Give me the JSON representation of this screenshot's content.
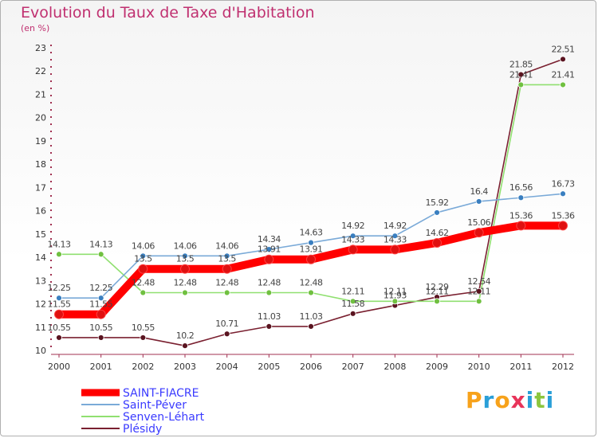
{
  "header": {
    "title": "Evolution du Taux de Taxe d'Habitation",
    "unit": "(en %)"
  },
  "logo": {
    "text": "Proxiti",
    "colors": [
      "#f7a21b",
      "#2a9fd8",
      "#f7a21b",
      "#e8345a",
      "#2a9fd8",
      "#8cc63e",
      "#2a9fd8"
    ]
  },
  "chart_data": {
    "type": "line",
    "categories": [
      "2000",
      "2001",
      "2002",
      "2003",
      "2004",
      "2005",
      "2006",
      "2007",
      "2008",
      "2009",
      "2010",
      "2011",
      "2012"
    ],
    "ylim": [
      10,
      23
    ],
    "yticks": [
      10,
      11,
      12,
      13,
      14,
      15,
      16,
      17,
      18,
      19,
      20,
      21,
      22,
      23
    ],
    "grid": false,
    "legend_placement": "bottom-left",
    "series": [
      {
        "name": "SAINT-FIACRE",
        "color": "#ff0000",
        "marker": "#e01010",
        "values": [
          11.55,
          11.55,
          13.5,
          13.5,
          13.5,
          13.91,
          13.91,
          14.33,
          14.33,
          14.62,
          15.06,
          15.36,
          15.36
        ],
        "labels": [
          "11.55",
          "11.55",
          "13.5",
          "13.5",
          "13.5",
          "13.91",
          "13.91",
          "14.33",
          "14.33",
          "14.62",
          "15.06",
          "15.36",
          "15.36"
        ]
      },
      {
        "name": "Saint-Péver",
        "color": "#7aaad8",
        "marker": "#3a7fc0",
        "values": [
          12.25,
          12.25,
          14.06,
          14.06,
          14.06,
          14.34,
          14.63,
          14.92,
          14.92,
          15.92,
          16.4,
          16.56,
          16.73
        ],
        "labels": [
          "12.25",
          "12.25",
          "14.06",
          "14.06",
          "14.06",
          "14.34",
          "14.63",
          "14.92",
          "14.92",
          "15.92",
          "16.4",
          "16.56",
          "16.73"
        ]
      },
      {
        "name": "Senven-Léhart",
        "color": "#90e070",
        "marker": "#70c040",
        "values": [
          14.13,
          14.13,
          12.48,
          12.48,
          12.48,
          12.48,
          12.48,
          12.11,
          12.11,
          12.11,
          12.11,
          21.41,
          21.41
        ],
        "labels": [
          "14.13",
          "14.13",
          "12.48",
          "12.48",
          "12.48",
          "12.48",
          "12.48",
          "12.11",
          "12.11",
          "12.11",
          "12.11",
          "21.41",
          "21.41"
        ]
      },
      {
        "name": "Plésidy",
        "color": "#7a2030",
        "marker": "#5a1420",
        "values": [
          10.55,
          10.55,
          10.55,
          10.2,
          10.71,
          11.03,
          11.03,
          11.58,
          11.93,
          12.29,
          12.54,
          21.85,
          22.51
        ],
        "labels": [
          "10.55",
          "10.55",
          "10.55",
          "10.2",
          "10.71",
          "11.03",
          "11.03",
          "11.58",
          "11.93",
          "12.29",
          "12.54",
          "21.85",
          "22.51"
        ]
      }
    ]
  }
}
